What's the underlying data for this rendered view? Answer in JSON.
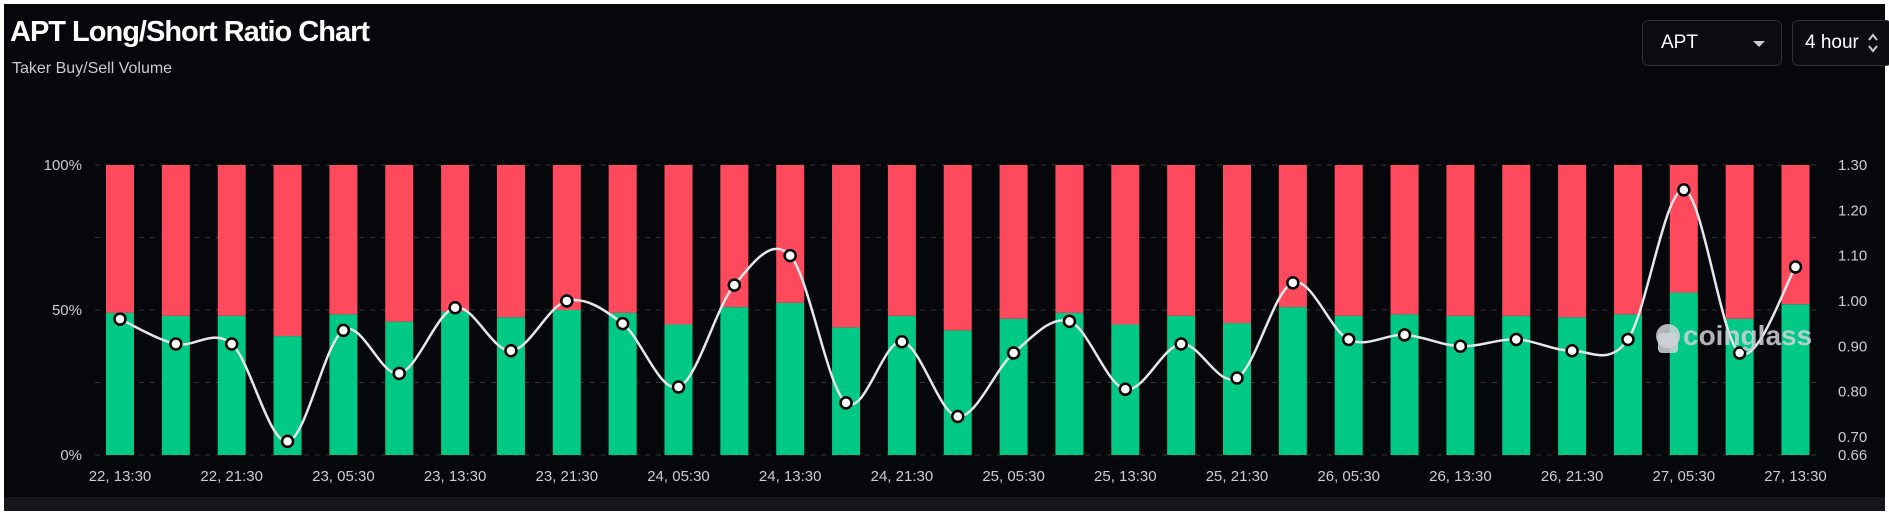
{
  "header": {
    "title": "APT Long/Short Ratio Chart",
    "subtitle": "Taker Buy/Sell Volume"
  },
  "controls": {
    "symbol_select": "APT",
    "interval_select": "4 hour"
  },
  "watermark": "coinglass",
  "colors": {
    "background": "#06070b",
    "long": "#00c985",
    "short": "#ff4a5e",
    "ratio_line": "#e6e7ea",
    "grid": "#33363d"
  },
  "chart_data": {
    "type": "bar",
    "stacked": true,
    "title": "APT Long/Short Ratio Chart",
    "subtitle": "Taker Buy/Sell Volume",
    "x_tick_labels": [
      "22, 13:30",
      "22, 21:30",
      "23, 05:30",
      "23, 13:30",
      "23, 21:30",
      "24, 05:30",
      "24, 13:30",
      "24, 21:30",
      "25, 05:30",
      "25, 13:30",
      "25, 21:30",
      "26, 05:30",
      "26, 13:30",
      "26, 21:30",
      "27, 05:30",
      "27, 13:30"
    ],
    "y_left": {
      "ticks": [
        "0%",
        "50%",
        "100%"
      ],
      "range": [
        0,
        100
      ]
    },
    "y_right": {
      "ticks": [
        "0.66",
        "0.70",
        "0.80",
        "0.90",
        "1.00",
        "1.10",
        "1.20",
        "1.30"
      ],
      "range": [
        0.66,
        1.3
      ]
    },
    "series": [
      {
        "kind": "bar",
        "axis": "left",
        "values": [
          49,
          48,
          48,
          41,
          48.5,
          46,
          49.5,
          47.5,
          50,
          49,
          45,
          51,
          52.5,
          44,
          48,
          43,
          47,
          49,
          45,
          48,
          45.5,
          51,
          48,
          48.5,
          48,
          48,
          47.5,
          48.5,
          56,
          47,
          52
        ]
      },
      {
        "kind": "bar",
        "axis": "left",
        "values": [
          51,
          52,
          52,
          59,
          51.5,
          54,
          50.5,
          52.5,
          50,
          51,
          55,
          49,
          47.5,
          56,
          52,
          57,
          53,
          51,
          55,
          52,
          54.5,
          49,
          52,
          51.5,
          52,
          52,
          52.5,
          51.5,
          44,
          53,
          48
        ]
      },
      {
        "kind": "line",
        "axis": "right",
        "values": [
          0.96,
          0.905,
          0.905,
          0.69,
          0.935,
          0.84,
          0.985,
          0.89,
          1.0,
          0.95,
          0.81,
          1.035,
          1.1,
          0.775,
          0.91,
          0.745,
          0.885,
          0.955,
          0.805,
          0.905,
          0.83,
          1.04,
          0.915,
          0.925,
          0.9,
          0.915,
          0.89,
          0.915,
          1.245,
          0.885,
          1.075
        ]
      }
    ]
  }
}
